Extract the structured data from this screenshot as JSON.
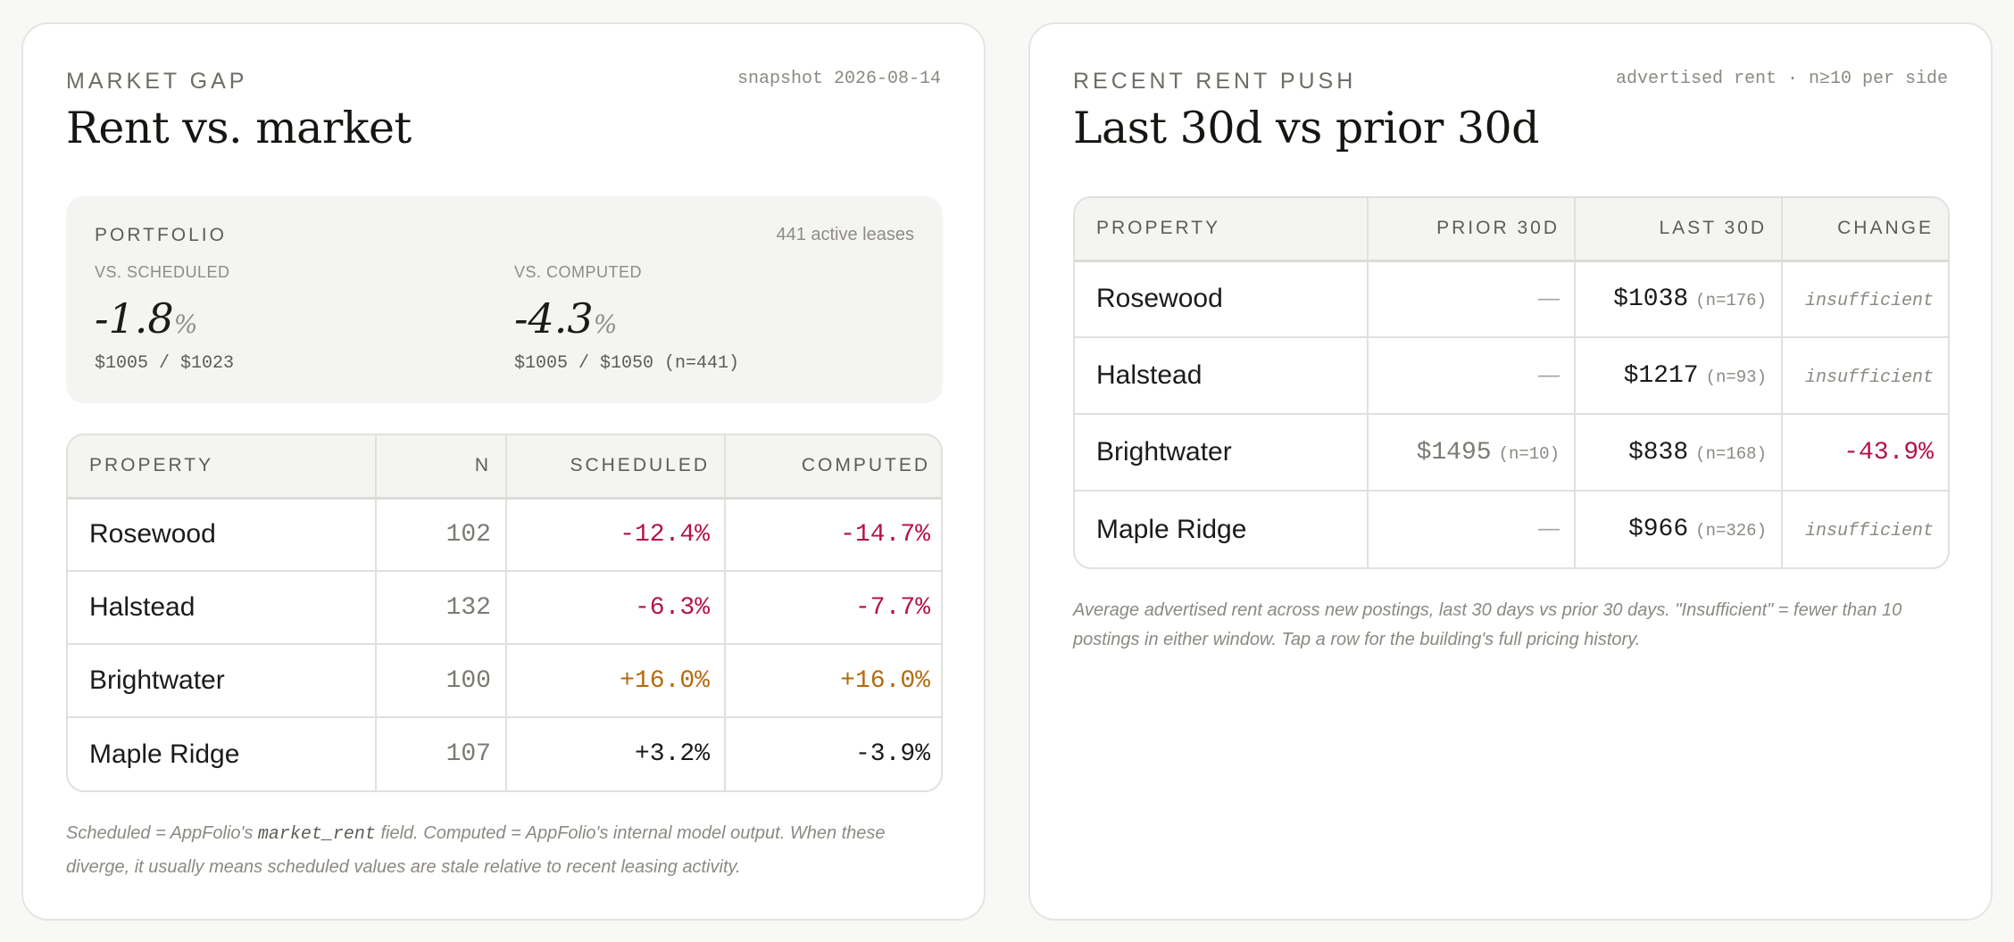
{
  "left": {
    "eyebrow": "MARKET GAP",
    "snapshot": "snapshot 2026-08-14",
    "title": "Rent vs. market",
    "portfolio": {
      "label": "PORTFOLIO",
      "count": "441 active leases",
      "scheduled": {
        "label": "VS. SCHEDULED",
        "value": "-1.8",
        "unit": "%",
        "sub": "$1005 / $1023"
      },
      "computed": {
        "label": "VS. COMPUTED",
        "value": "-4.3",
        "unit": "%",
        "sub": "$1005 / $1050 (n=441)"
      }
    },
    "table": {
      "headers": [
        "PROPERTY",
        "N",
        "SCHEDULED",
        "COMPUTED"
      ],
      "rows": [
        {
          "property": "Rosewood",
          "n": "102",
          "scheduled": "-12.4%",
          "computed": "-14.7%"
        },
        {
          "property": "Halstead",
          "n": "132",
          "scheduled": "-6.3%",
          "computed": "-7.7%"
        },
        {
          "property": "Brightwater",
          "n": "100",
          "scheduled": "+16.0%",
          "computed": "+16.0%"
        },
        {
          "property": "Maple Ridge",
          "n": "107",
          "scheduled": "+3.2%",
          "computed": "-3.9%"
        }
      ]
    },
    "note": {
      "before": "Scheduled = AppFolio's ",
      "code": "market_rent",
      "after": " field. Computed = AppFolio's internal model output. When these diverge, it usually means scheduled values are stale relative to recent leasing activity."
    }
  },
  "right": {
    "eyebrow": "RECENT RENT PUSH",
    "meta": "advertised rent · n≥10 per side",
    "title": "Last 30d vs prior 30d",
    "table": {
      "headers": [
        "PROPERTY",
        "PRIOR 30D",
        "LAST 30D",
        "CHANGE"
      ],
      "rows": [
        {
          "property": "Rosewood",
          "prior": "—",
          "prior_n": "",
          "last": "$1038",
          "last_n": "(n=176)",
          "change": "insufficient"
        },
        {
          "property": "Halstead",
          "prior": "—",
          "prior_n": "",
          "last": "$1217",
          "last_n": "(n=93)",
          "change": "insufficient"
        },
        {
          "property": "Brightwater",
          "prior": "$1495",
          "prior_n": "(n=10)",
          "last": "$838",
          "last_n": "(n=168)",
          "change": "-43.9%"
        },
        {
          "property": "Maple Ridge",
          "prior": "—",
          "prior_n": "",
          "last": "$966",
          "last_n": "(n=326)",
          "change": "insufficient"
        }
      ]
    },
    "note": "Average advertised rent across new postings, last 30 days vs prior 30 days. \"Insufficient\" = fewer than 10 postings in either window. Tap a row for the building's full pricing history."
  },
  "colors": {
    "negative": "#b3134a",
    "positive_large": "#b36a0f",
    "neutral": "#1c1b19",
    "muted": "#8c8983",
    "card_border": "#e6e5e2",
    "summary_bg": "#f4f4f3"
  }
}
